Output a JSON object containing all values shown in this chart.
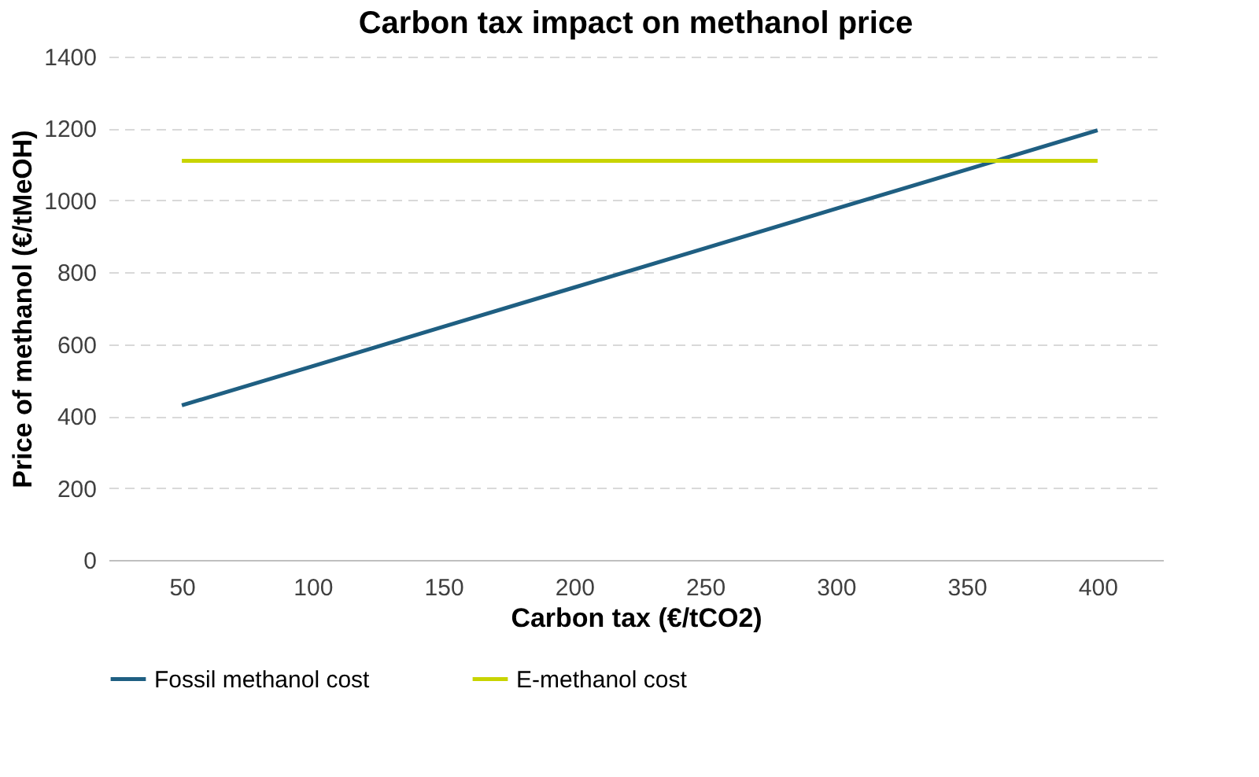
{
  "chart_data": {
    "type": "line",
    "title": "Carbon tax impact on methanol price",
    "xlabel": "Carbon tax (€/tCO2)",
    "ylabel": "Price of methanol (€/tMeOH)",
    "categories": [
      "50",
      "100",
      "150",
      "200",
      "250",
      "300",
      "350",
      "400"
    ],
    "series": [
      {
        "name": "Fossil methanol cost",
        "color": "#1f5f82",
        "values": [
          430,
          539,
          649,
          758,
          867,
          977,
          1086,
          1195
        ]
      },
      {
        "name": "E-methanol cost",
        "color": "#c8d400",
        "values": [
          1110,
          1110,
          1110,
          1110,
          1110,
          1110,
          1110,
          1110
        ]
      }
    ],
    "ylim": [
      0,
      1400
    ],
    "yticks": [
      0,
      200,
      400,
      600,
      800,
      1000,
      1200,
      1400
    ],
    "grid": "y",
    "legend": "bottom"
  }
}
